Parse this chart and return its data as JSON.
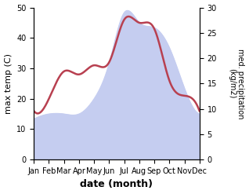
{
  "months": [
    "Jan",
    "Feb",
    "Mar",
    "Apr",
    "May",
    "Jun",
    "Jul",
    "Aug",
    "Sep",
    "Oct",
    "Nov",
    "Dec"
  ],
  "max_temp": [
    16,
    20,
    29,
    28,
    31,
    32,
    46,
    45,
    43,
    26,
    21,
    16
  ],
  "precipitation": [
    8,
    9,
    9,
    9,
    12,
    19,
    29,
    27,
    26,
    22,
    14,
    9
  ],
  "temp_color": "#b84050",
  "precip_fill_color": "#c5cdf0",
  "temp_ylim": [
    0,
    50
  ],
  "precip_ylim": [
    0,
    30
  ],
  "xlabel": "date (month)",
  "ylabel_left": "max temp (C)",
  "ylabel_right": "med. precipitation\n(kg/m2)",
  "background_color": "#ffffff"
}
